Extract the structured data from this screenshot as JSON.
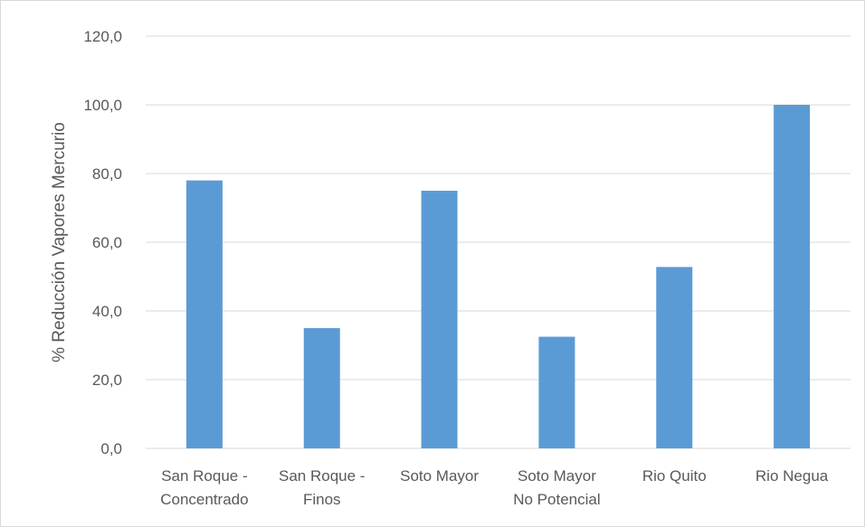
{
  "chart_data": {
    "type": "bar",
    "title": "",
    "xlabel": "",
    "ylabel": "% Reducción Vapores Mercurio",
    "categories": [
      [
        "San Roque -",
        "Concentrado"
      ],
      [
        "San Roque -",
        "Finos"
      ],
      [
        "Soto Mayor"
      ],
      [
        "Soto Mayor",
        "No Potencial"
      ],
      [
        "Rio Quito"
      ],
      [
        "Rio Negua"
      ]
    ],
    "values": [
      78.0,
      35.0,
      75.0,
      32.5,
      52.8,
      100.0
    ],
    "ylim": [
      0,
      120
    ],
    "yticks": [
      "0,0",
      "20,0",
      "40,0",
      "60,0",
      "80,0",
      "100,0",
      "120,0"
    ],
    "grid": true,
    "legend": "none",
    "bar_color": "#5b9bd5",
    "grid_color": "#d9d9d9",
    "text_color": "#595959"
  }
}
